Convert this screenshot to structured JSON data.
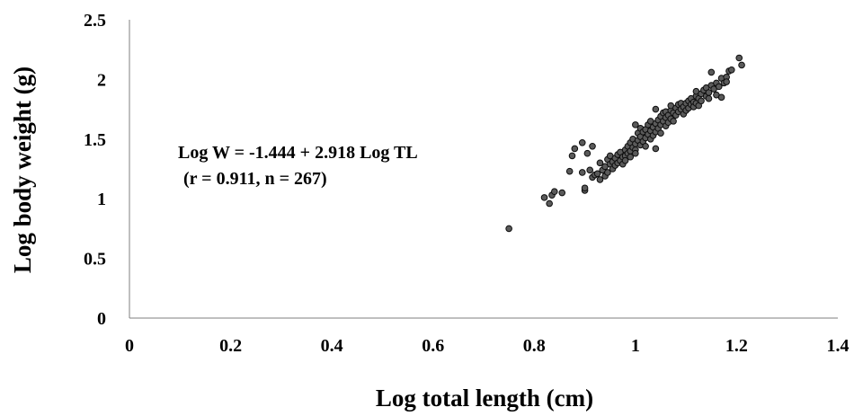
{
  "chart_data": {
    "type": "scatter",
    "title": "",
    "xlabel": "Log total length (cm)",
    "ylabel": "Log body weight (g)",
    "xlim": [
      0,
      1.4
    ],
    "ylim": [
      0,
      2.5
    ],
    "x_ticks": [
      "0",
      "0.2",
      "0.4",
      "0.6",
      "0.8",
      "1",
      "1.2",
      "1.4"
    ],
    "y_ticks": [
      "0",
      "0.5",
      "1",
      "1.5",
      "2",
      "2.5"
    ],
    "grid": false,
    "legend": "none",
    "marker_color": "#5a5a5a",
    "marker_edge_color": "#0d0d0d",
    "annotations": [
      "Log W = -1.444 + 2.918 Log TL",
      "(r = 0.911, n = 267)"
    ],
    "series": [
      {
        "points": [
          [
            0.75,
            0.75
          ],
          [
            0.82,
            1.01
          ],
          [
            0.83,
            0.96
          ],
          [
            0.835,
            1.03
          ],
          [
            0.84,
            1.06
          ],
          [
            0.855,
            1.05
          ],
          [
            0.87,
            1.23
          ],
          [
            0.875,
            1.36
          ],
          [
            0.88,
            1.42
          ],
          [
            0.895,
            1.22
          ],
          [
            0.895,
            1.47
          ],
          [
            0.9,
            1.07
          ],
          [
            0.9,
            1.09
          ],
          [
            0.905,
            1.38
          ],
          [
            0.91,
            1.24
          ],
          [
            0.915,
            1.44
          ],
          [
            0.915,
            1.18
          ],
          [
            0.92,
            1.2
          ],
          [
            0.925,
            1.21
          ],
          [
            0.93,
            1.16
          ],
          [
            0.93,
            1.3
          ],
          [
            0.935,
            1.24
          ],
          [
            0.94,
            1.27
          ],
          [
            0.94,
            1.19
          ],
          [
            0.945,
            1.33
          ],
          [
            0.945,
            1.22
          ],
          [
            0.95,
            1.36
          ],
          [
            0.95,
            1.29
          ],
          [
            0.955,
            1.31
          ],
          [
            0.955,
            1.25
          ],
          [
            0.96,
            1.34
          ],
          [
            0.96,
            1.28
          ],
          [
            0.965,
            1.37
          ],
          [
            0.965,
            1.3
          ],
          [
            0.97,
            1.39
          ],
          [
            0.97,
            1.32
          ],
          [
            0.975,
            1.35
          ],
          [
            0.975,
            1.29
          ],
          [
            0.98,
            1.41
          ],
          [
            0.98,
            1.36
          ],
          [
            0.98,
            1.32
          ],
          [
            0.985,
            1.44
          ],
          [
            0.985,
            1.38
          ],
          [
            0.99,
            1.47
          ],
          [
            0.99,
            1.4
          ],
          [
            0.99,
            1.35
          ],
          [
            0.995,
            1.43
          ],
          [
            0.995,
            1.5
          ],
          [
            1.0,
            1.46
          ],
          [
            1.0,
            1.41
          ],
          [
            1.0,
            1.38
          ],
          [
            1.0,
            1.62
          ],
          [
            1.005,
            1.49
          ],
          [
            1.005,
            1.55
          ],
          [
            1.01,
            1.52
          ],
          [
            1.01,
            1.45
          ],
          [
            1.01,
            1.59
          ],
          [
            1.015,
            1.48
          ],
          [
            1.015,
            1.56
          ],
          [
            1.02,
            1.51
          ],
          [
            1.02,
            1.58
          ],
          [
            1.02,
            1.44
          ],
          [
            1.025,
            1.54
          ],
          [
            1.025,
            1.62
          ],
          [
            1.03,
            1.57
          ],
          [
            1.03,
            1.5
          ],
          [
            1.03,
            1.65
          ],
          [
            1.035,
            1.6
          ],
          [
            1.035,
            1.53
          ],
          [
            1.04,
            1.63
          ],
          [
            1.04,
            1.56
          ],
          [
            1.04,
            1.42
          ],
          [
            1.04,
            1.75
          ],
          [
            1.045,
            1.66
          ],
          [
            1.045,
            1.59
          ],
          [
            1.05,
            1.62
          ],
          [
            1.05,
            1.69
          ],
          [
            1.05,
            1.55
          ],
          [
            1.055,
            1.65
          ],
          [
            1.055,
            1.72
          ],
          [
            1.06,
            1.68
          ],
          [
            1.06,
            1.61
          ],
          [
            1.06,
            1.73
          ],
          [
            1.065,
            1.7
          ],
          [
            1.065,
            1.64
          ],
          [
            1.07,
            1.74
          ],
          [
            1.07,
            1.67
          ],
          [
            1.07,
            1.78
          ],
          [
            1.075,
            1.72
          ],
          [
            1.075,
            1.65
          ],
          [
            1.08,
            1.76
          ],
          [
            1.08,
            1.7
          ],
          [
            1.085,
            1.79
          ],
          [
            1.085,
            1.73
          ],
          [
            1.09,
            1.75
          ],
          [
            1.09,
            1.8
          ],
          [
            1.095,
            1.77
          ],
          [
            1.095,
            1.71
          ],
          [
            1.1,
            1.8
          ],
          [
            1.1,
            1.74
          ],
          [
            1.105,
            1.82
          ],
          [
            1.105,
            1.76
          ],
          [
            1.11,
            1.79
          ],
          [
            1.11,
            1.84
          ],
          [
            1.115,
            1.81
          ],
          [
            1.115,
            1.77
          ],
          [
            1.12,
            1.86
          ],
          [
            1.12,
            1.8
          ],
          [
            1.12,
            1.9
          ],
          [
            1.125,
            1.84
          ],
          [
            1.125,
            1.78
          ],
          [
            1.13,
            1.88
          ],
          [
            1.13,
            1.82
          ],
          [
            1.135,
            1.91
          ],
          [
            1.14,
            1.86
          ],
          [
            1.14,
            1.93
          ],
          [
            1.145,
            1.89
          ],
          [
            1.145,
            1.84
          ],
          [
            1.15,
            1.95
          ],
          [
            1.15,
            2.06
          ],
          [
            1.155,
            1.92
          ],
          [
            1.16,
            1.97
          ],
          [
            1.16,
            1.87
          ],
          [
            1.165,
            1.94
          ],
          [
            1.17,
            2.01
          ],
          [
            1.17,
            1.85
          ],
          [
            1.175,
            1.97
          ],
          [
            1.18,
            2.02
          ],
          [
            1.18,
            1.98
          ],
          [
            1.185,
            2.07
          ],
          [
            1.19,
            2.08
          ],
          [
            1.205,
            2.18
          ],
          [
            1.21,
            2.12
          ]
        ]
      }
    ]
  }
}
